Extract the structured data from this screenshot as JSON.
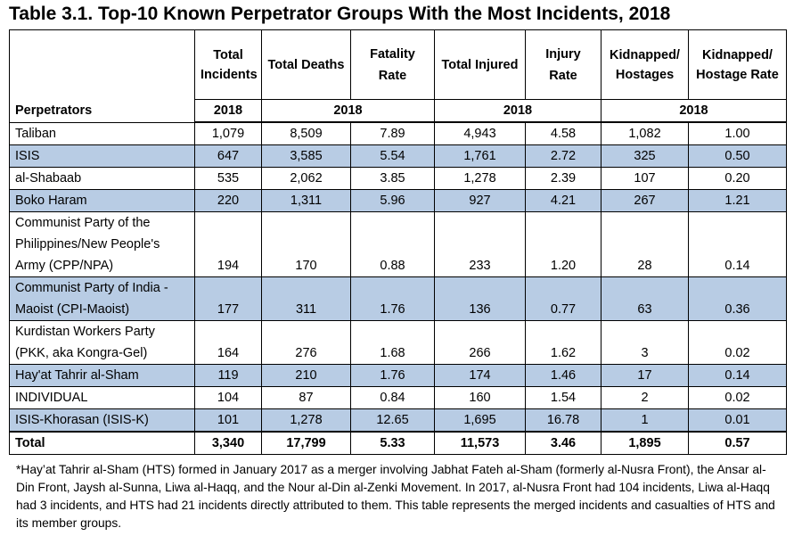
{
  "title": "Table 3.1.  Top-10 Known Perpetrator Groups With the Most Incidents, 2018",
  "headers": {
    "perpetrators": "Perpetrators",
    "total_incidents": "Total Incidents",
    "total_deaths": "Total Deaths",
    "fatality_rate": "Fatality Rate",
    "total_injured": "Total Injured",
    "injury_rate": "Injury Rate",
    "kidnapped": "Kidnapped/ Hostages",
    "kidnapped_rate": "Kidnapped/ Hostage Rate"
  },
  "year_labels": [
    "2018",
    "2018",
    "2018",
    "2018"
  ],
  "rows": [
    {
      "name": "Taliban",
      "incidents": "1,079",
      "deaths": "8,509",
      "fatality": "7.89",
      "injured": "4,943",
      "injury": "4.58",
      "kidnapped": "1,082",
      "krate": "1.00"
    },
    {
      "name": "ISIS",
      "incidents": "647",
      "deaths": "3,585",
      "fatality": "5.54",
      "injured": "1,761",
      "injury": "2.72",
      "kidnapped": "325",
      "krate": "0.50"
    },
    {
      "name": "al-Shabaab",
      "incidents": "535",
      "deaths": "2,062",
      "fatality": "3.85",
      "injured": "1,278",
      "injury": "2.39",
      "kidnapped": "107",
      "krate": "0.20"
    },
    {
      "name": "Boko Haram",
      "incidents": "220",
      "deaths": "1,311",
      "fatality": "5.96",
      "injured": "927",
      "injury": "4.21",
      "kidnapped": "267",
      "krate": "1.21"
    },
    {
      "name": "Communist Party of the Philippines/New People's Army (CPP/NPA)",
      "incidents": "194",
      "deaths": "170",
      "fatality": "0.88",
      "injured": "233",
      "injury": "1.20",
      "kidnapped": "28",
      "krate": "0.14"
    },
    {
      "name": "Communist Party of India - Maoist (CPI-Maoist)",
      "incidents": "177",
      "deaths": "311",
      "fatality": "1.76",
      "injured": "136",
      "injury": "0.77",
      "kidnapped": "63",
      "krate": "0.36"
    },
    {
      "name": "Kurdistan Workers Party (PKK, aka Kongra-Gel)",
      "incidents": "164",
      "deaths": "276",
      "fatality": "1.68",
      "injured": "266",
      "injury": "1.62",
      "kidnapped": "3",
      "krate": "0.02"
    },
    {
      "name": "Hay'at Tahrir al-Sham",
      "incidents": "119",
      "deaths": "210",
      "fatality": "1.76",
      "injured": "174",
      "injury": "1.46",
      "kidnapped": "17",
      "krate": "0.14"
    },
    {
      "name": "INDIVIDUAL",
      "incidents": "104",
      "deaths": "87",
      "fatality": "0.84",
      "injured": "160",
      "injury": "1.54",
      "kidnapped": "2",
      "krate": "0.02"
    },
    {
      "name": "ISIS-Khorasan (ISIS-K)",
      "incidents": "101",
      "deaths": "1,278",
      "fatality": "12.65",
      "injured": "1,695",
      "injury": "16.78",
      "kidnapped": "1",
      "krate": "0.01"
    }
  ],
  "total": {
    "name": "Total",
    "incidents": "3,340",
    "deaths": "17,799",
    "fatality": "5.33",
    "injured": "11,573",
    "injury": "3.46",
    "kidnapped": "1,895",
    "krate": "0.57"
  },
  "footnote": "*Hay’at Tahrir al-Sham (HTS) formed in January 2017 as a merger involving Jabhat Fateh al-Sham (formerly al-Nusra Front), the Ansar al-Din Front, Jaysh al-Sunna, Liwa al-Haqq, and the Nour al-Din al-Zenki Movement.  In 2017, al-Nusra Front had 104 incidents, Liwa al-Haqq had 3 incidents, and HTS had 21 incidents directly attributed to them.  This table represents the merged incidents and casualties of HTS and its member groups."
}
